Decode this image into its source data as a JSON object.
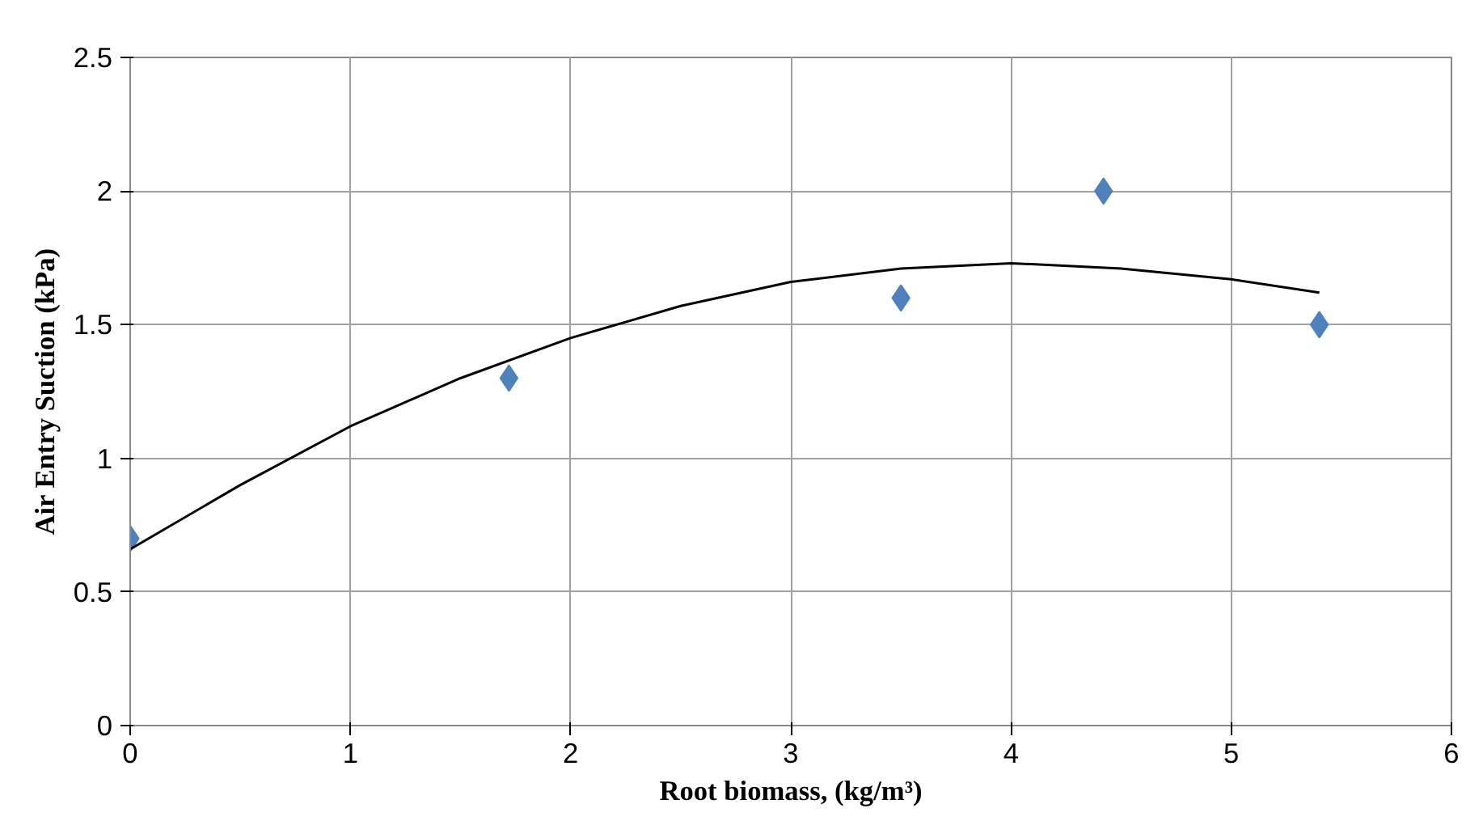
{
  "chart_data": {
    "type": "scatter",
    "xlabel": "Root biomass, (kg/m³)",
    "ylabel": "Air Entry Suction (kPa)",
    "xlim": [
      0,
      6
    ],
    "xticks": [
      0,
      1,
      2,
      3,
      4,
      5,
      6
    ],
    "ylim": [
      0,
      2.5
    ],
    "yticks": [
      0,
      0.5,
      1,
      1.5,
      2,
      2.5
    ],
    "grid": true,
    "series": [
      {
        "marker": "diamond",
        "color": "#4f81bd",
        "x": [
          0,
          1.72,
          3.5,
          4.42,
          5.4
        ],
        "values": [
          0.7,
          1.3,
          1.6,
          2.0,
          1.5
        ]
      },
      {
        "type": "line",
        "marker": "none",
        "color": "#000000",
        "x": [
          0,
          0.5,
          1,
          1.5,
          2,
          2.5,
          3,
          3.5,
          4,
          4.5,
          5,
          5.4
        ],
        "values": [
          0.66,
          0.9,
          1.12,
          1.3,
          1.45,
          1.57,
          1.66,
          1.71,
          1.73,
          1.71,
          1.67,
          1.62
        ]
      }
    ]
  }
}
